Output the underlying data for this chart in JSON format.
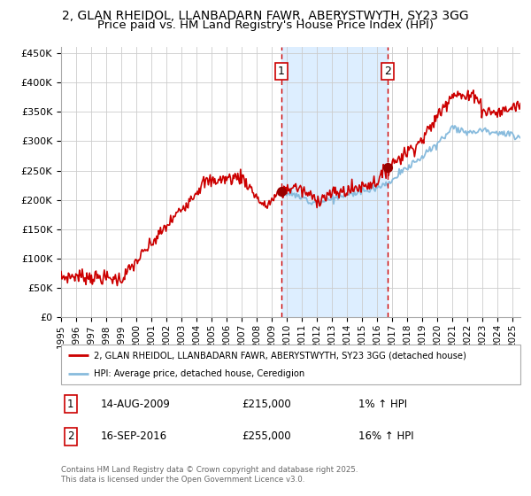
{
  "title": "2, GLAN RHEIDOL, LLANBADARN FAWR, ABERYSTWYTH, SY23 3GG",
  "subtitle": "Price paid vs. HM Land Registry's House Price Index (HPI)",
  "ylim": [
    0,
    460000
  ],
  "yticks": [
    0,
    50000,
    100000,
    150000,
    200000,
    250000,
    300000,
    350000,
    400000,
    450000
  ],
  "ytick_labels": [
    "£0",
    "£50K",
    "£100K",
    "£150K",
    "£200K",
    "£250K",
    "£300K",
    "£350K",
    "£400K",
    "£450K"
  ],
  "sale1_date_num": 2009.618,
  "sale1_price": 215000,
  "sale1_label": "1",
  "sale2_date_num": 2016.71,
  "sale2_price": 255000,
  "sale2_label": "2",
  "shade_color": "#ddeeff",
  "vline_color": "#cc0000",
  "red_line_color": "#cc0000",
  "blue_line_color": "#88bbdd",
  "marker_color": "#990000",
  "legend_label_red": "2, GLAN RHEIDOL, LLANBADARN FAWR, ABERYSTWYTH, SY23 3GG (detached house)",
  "legend_label_blue": "HPI: Average price, detached house, Ceredigion",
  "table_row1": [
    "1",
    "14-AUG-2009",
    "£215,000",
    "1% ↑ HPI"
  ],
  "table_row2": [
    "2",
    "16-SEP-2016",
    "£255,000",
    "16% ↑ HPI"
  ],
  "footnote": "Contains HM Land Registry data © Crown copyright and database right 2025.\nThis data is licensed under the Open Government Licence v3.0.",
  "background_color": "#ffffff",
  "grid_color": "#cccccc",
  "title_fontsize": 10,
  "subtitle_fontsize": 9.5
}
